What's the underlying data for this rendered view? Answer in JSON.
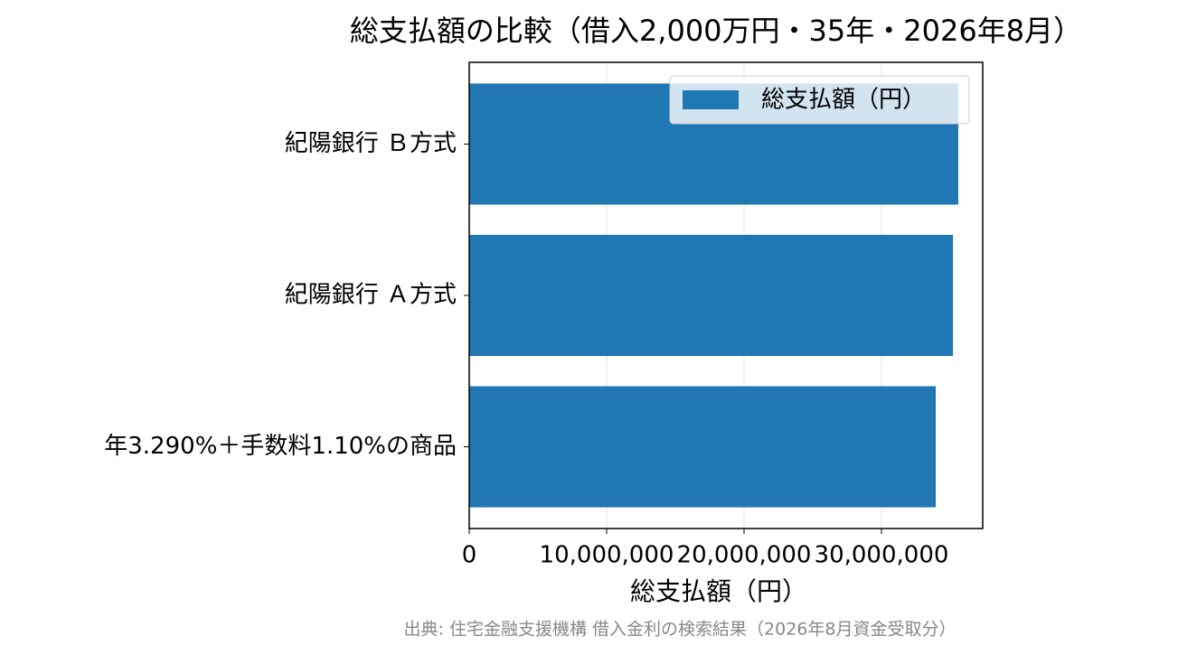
{
  "chart_data": {
    "type": "barh",
    "title": "総支払額の比較（借入2,000万円・35年・2026年8月）",
    "xlabel": "総支払額（円）",
    "source": "出典: 住宅金融支援機構 借入金利の検索結果（2026年8月資金受取分）",
    "categories": [
      "紀陽銀行 Ｂ方式",
      "紀陽銀行 Ａ方式",
      "年3.290%＋手数料1.10%の商品"
    ],
    "series": [
      {
        "name": "総支払額（円）",
        "color": "#1f77b4",
        "values": [
          35590000,
          35200000,
          33950000
        ]
      }
    ],
    "xlim": [
      0,
      37370000
    ],
    "xticks": [
      0,
      {
        "value": 10000000,
        "label": "10,000,000"
      },
      {
        "value": 20000000,
        "label": "20,000,000"
      },
      {
        "value": 30000000,
        "label": "30,000,000"
      }
    ],
    "grid": true,
    "legend": "upper-right"
  }
}
